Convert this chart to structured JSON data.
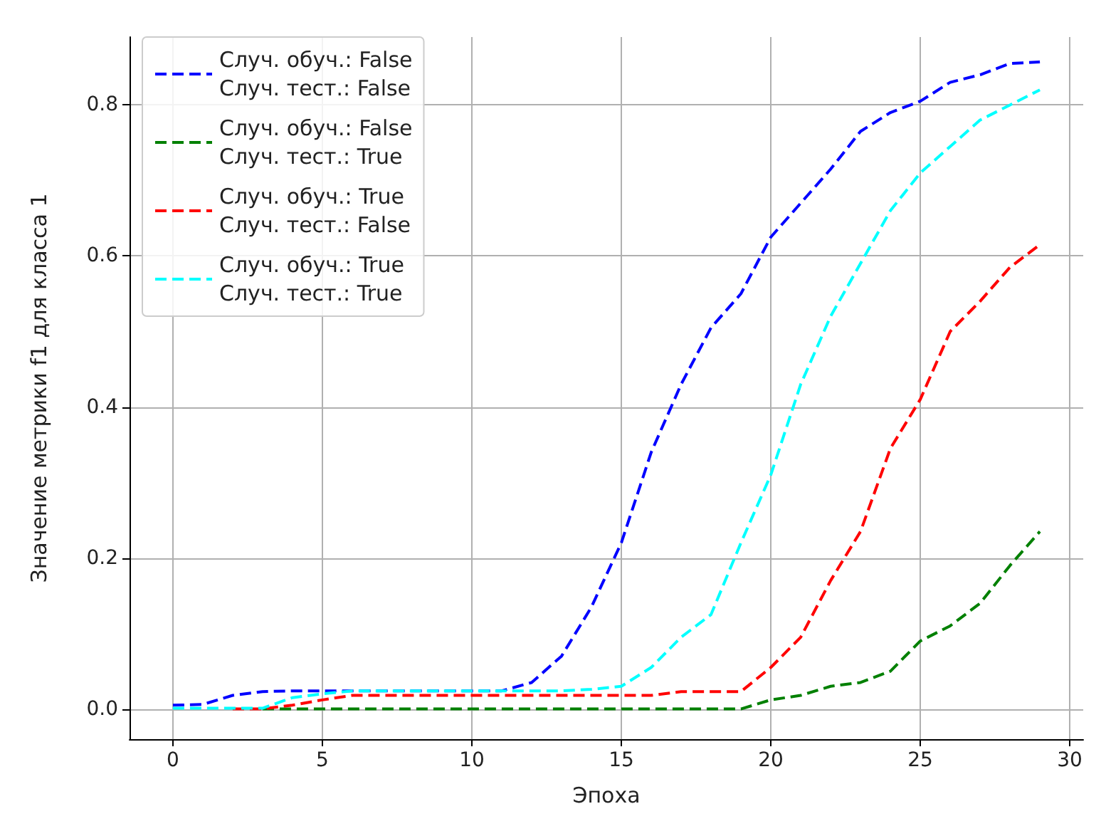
{
  "chart_data": {
    "type": "line",
    "xlabel": "Эпоха",
    "ylabel": "Значение метрики f1 для класса 1",
    "x": [
      0,
      1,
      2,
      3,
      4,
      5,
      6,
      7,
      8,
      9,
      10,
      11,
      12,
      13,
      14,
      15,
      16,
      17,
      18,
      19,
      20,
      21,
      22,
      23,
      24,
      25,
      26,
      27,
      28,
      29
    ],
    "series": [
      {
        "name": "Случ. обуч.: False\nСлуч. тест.: False",
        "color": "#0000ff",
        "values": [
          0.005,
          0.006,
          0.018,
          0.023,
          0.024,
          0.024,
          0.024,
          0.024,
          0.024,
          0.024,
          0.024,
          0.024,
          0.035,
          0.07,
          0.135,
          0.22,
          0.34,
          0.43,
          0.505,
          0.55,
          0.625,
          0.67,
          0.715,
          0.765,
          0.79,
          0.805,
          0.83,
          0.84,
          0.855,
          0.857
        ]
      },
      {
        "name": "Случ. обуч.: False\nСлуч. тест.: True",
        "color": "#008000",
        "values": [
          null,
          null,
          null,
          0,
          0,
          0,
          0,
          0,
          0,
          0,
          0,
          0,
          0,
          0,
          0,
          0,
          0,
          0,
          0,
          0,
          0.012,
          0.018,
          0.03,
          0.035,
          0.05,
          0.09,
          0.11,
          0.14,
          0.19,
          0.235
        ]
      },
      {
        "name": "Случ. обуч.: True\nСлуч. тест.: False",
        "color": "#ff0000",
        "values": [
          null,
          null,
          0,
          0,
          0.005,
          0.012,
          0.018,
          0.018,
          0.018,
          0.018,
          0.018,
          0.018,
          0.018,
          0.018,
          0.018,
          0.018,
          0.018,
          0.023,
          0.023,
          0.023,
          0.055,
          0.095,
          0.17,
          0.235,
          0.345,
          0.41,
          0.5,
          0.54,
          0.585,
          0.615
        ]
      },
      {
        "name": "Случ. обуч.: True\nСлуч. тест.: True",
        "color": "#00ffff",
        "values": [
          0.001,
          0.001,
          0.001,
          0.001,
          0.015,
          0.02,
          0.024,
          0.024,
          0.024,
          0.024,
          0.024,
          0.024,
          0.024,
          0.024,
          0.026,
          0.03,
          0.055,
          0.095,
          0.125,
          0.22,
          0.31,
          0.43,
          0.52,
          0.59,
          0.66,
          0.71,
          0.745,
          0.78,
          0.8,
          0.82
        ]
      }
    ],
    "xlim": [
      -1.45,
      30.45
    ],
    "xticks": [
      0,
      5,
      10,
      15,
      20,
      25,
      30
    ],
    "ylim": [
      -0.04,
      0.89
    ],
    "yticks": [
      {
        "value": 0,
        "label": "0.0"
      },
      {
        "value": 0.2,
        "label": "0.2"
      },
      {
        "value": 0.4,
        "label": "0.4"
      },
      {
        "value": 0.6,
        "label": "0.6"
      },
      {
        "value": 0.8,
        "label": "0.8"
      }
    ],
    "grid": true,
    "legend": "top left",
    "line_style": "dashed",
    "marker": "none"
  }
}
